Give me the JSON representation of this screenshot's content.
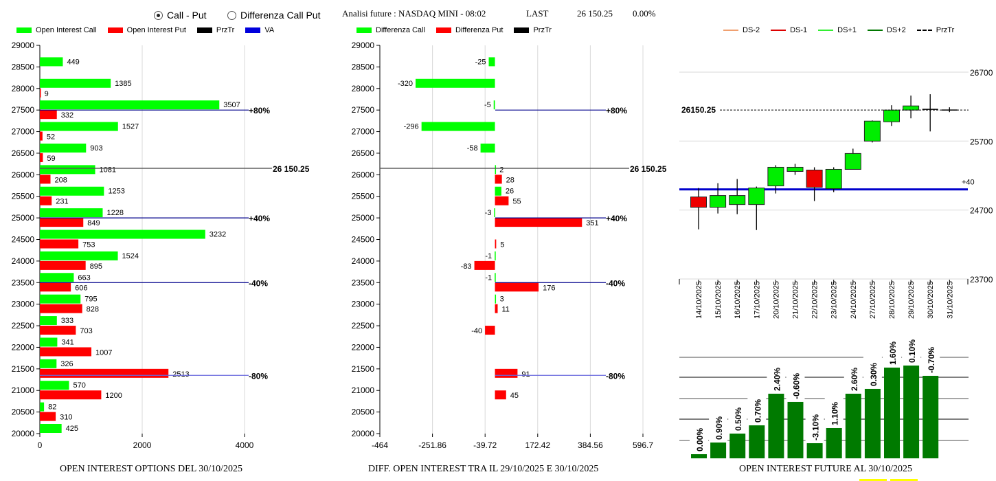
{
  "header": {
    "radio_options": [
      {
        "label": "Call - Put",
        "selected": true
      },
      {
        "label": "Differenza Call Put",
        "selected": false
      }
    ],
    "analysis_label": "Analisi future : NASDAQ MINI - 08:02",
    "last_label": "LAST",
    "last_value": "26 150.25",
    "last_change": "0.00%"
  },
  "colors": {
    "call": "#00ff00",
    "put": "#ff0000",
    "przTr": "#000000",
    "va": "#0000cc",
    "candle_up": "#00ee00",
    "candle_down": "#ee0000",
    "oi_bar": "#007a00",
    "ds_minus2": "#f0a070",
    "ds_minus1": "#dd0000",
    "ds_plus1": "#33ee33",
    "ds_plus2": "#007700"
  },
  "chart_data": [
    {
      "type": "bar",
      "orientation": "horizontal",
      "title": "OPEN INTEREST OPTIONS DEL 30/10/2025",
      "legend": [
        "Open Interest Call",
        "Open Interest Put",
        "PrzTr",
        "VA"
      ],
      "legend_position": "top",
      "categories": [
        29000,
        28500,
        28000,
        27500,
        27000,
        26500,
        26000,
        25500,
        25000,
        24500,
        24000,
        23500,
        23000,
        22500,
        22000,
        21500,
        21000,
        20500,
        20000
      ],
      "series": [
        {
          "name": "Open Interest Call",
          "values": [
            null,
            449,
            1385,
            3507,
            1527,
            903,
            1081,
            1253,
            1228,
            3232,
            1524,
            663,
            795,
            333,
            341,
            326,
            570,
            82,
            425
          ]
        },
        {
          "name": "Open Interest Put",
          "values": [
            null,
            null,
            9,
            332,
            52,
            59,
            208,
            231,
            849,
            753,
            895,
            606,
            828,
            703,
            1007,
            2513,
            1200,
            310,
            null
          ]
        }
      ],
      "xlim": [
        0,
        4000
      ],
      "xticks": [
        "0",
        "2000",
        "4000"
      ],
      "yticks": [
        "29000",
        "28500",
        "28000",
        "27500",
        "27000",
        "26500",
        "26000",
        "25500",
        "25000",
        "24500",
        "24000",
        "23500",
        "23000",
        "22500",
        "22000",
        "21500",
        "21000",
        "20500",
        "20000"
      ],
      "reference_lines": [
        {
          "label": "+80%",
          "level": 27500,
          "kind": "va"
        },
        {
          "label": "26 150.25",
          "level": 26150.25,
          "kind": "przTr"
        },
        {
          "label": "+40%",
          "level": 25000,
          "kind": "va"
        },
        {
          "label": "-40%",
          "level": 23500,
          "kind": "va"
        },
        {
          "label": "-80%",
          "level": 21350,
          "kind": "va-light"
        }
      ]
    },
    {
      "type": "bar",
      "orientation": "horizontal",
      "title": "DIFF. OPEN INTEREST TRA IL 29/10/2025 E 30/10/2025",
      "legend": [
        "Differenza Call",
        "Differenza Put",
        "PrzTr"
      ],
      "legend_position": "top",
      "categories": [
        29000,
        28500,
        28000,
        27500,
        27000,
        26500,
        26000,
        25500,
        25000,
        24500,
        24000,
        23500,
        23000,
        22500,
        22000,
        21500,
        21000,
        20500,
        20000
      ],
      "series": [
        {
          "name": "Differenza Call",
          "values": [
            null,
            -25,
            -320,
            -5,
            -296,
            -58,
            2,
            26,
            -3,
            null,
            -1,
            -1,
            3,
            null,
            null,
            null,
            null,
            null,
            null
          ]
        },
        {
          "name": "Differenza Put",
          "values": [
            null,
            null,
            null,
            null,
            null,
            null,
            28,
            55,
            351,
            5,
            -83,
            176,
            11,
            -40,
            null,
            91,
            45,
            null,
            null
          ]
        }
      ],
      "xlim": [
        -464,
        596.7
      ],
      "xticks": [
        "-464",
        "-251.86",
        "-39.72",
        "172.42",
        "384.56",
        "596.7"
      ],
      "yticks": [
        "29000",
        "28500",
        "28000",
        "27500",
        "27000",
        "26500",
        "26000",
        "25500",
        "25000",
        "24500",
        "24000",
        "23500",
        "23000",
        "22500",
        "22000",
        "21500",
        "21000",
        "20500",
        "20000"
      ],
      "reference_lines": [
        {
          "label": "+80%",
          "level": 27500,
          "kind": "va"
        },
        {
          "label": "26 150.25",
          "level": 26150.25,
          "kind": "przTr"
        },
        {
          "label": "+40%",
          "level": 25000,
          "kind": "va"
        },
        {
          "label": "-40%",
          "level": 23500,
          "kind": "va"
        },
        {
          "label": "-80%",
          "level": 21350,
          "kind": "va-light"
        }
      ]
    },
    {
      "type": "candlestick",
      "title": "",
      "legend": [
        "DS-2",
        "DS-1",
        "DS+1",
        "DS+2",
        "PrzTr"
      ],
      "legend_position": "top",
      "yticks": [
        "26700",
        "25700",
        "24700",
        "23700"
      ],
      "ylim": [
        23700,
        26700
      ],
      "price_label": "26150.25",
      "price_level": 26150.25,
      "va_label": "+40",
      "va_level": 25000,
      "x": [
        "14/10/2025",
        "15/10/2025",
        "16/10/2025",
        "17/10/2025",
        "20/10/2025",
        "21/10/2025",
        "22/10/2025",
        "23/10/2025",
        "24/10/2025",
        "27/10/2025",
        "28/10/2025",
        "29/10/2025",
        "30/10/2025",
        "31/10/2025"
      ],
      "candles": [
        {
          "open": 24890,
          "close": 24740,
          "high": 25020,
          "low": 24420
        },
        {
          "open": 24740,
          "close": 24910,
          "high": 25090,
          "low": 24650
        },
        {
          "open": 24780,
          "close": 24910,
          "high": 25150,
          "low": 24640
        },
        {
          "open": 24780,
          "close": 25020,
          "high": 25040,
          "low": 24410
        },
        {
          "open": 25050,
          "close": 25320,
          "high": 25350,
          "low": 24940
        },
        {
          "open": 25260,
          "close": 25320,
          "high": 25370,
          "low": 25210
        },
        {
          "open": 25280,
          "close": 25030,
          "high": 25320,
          "low": 24830
        },
        {
          "open": 25010,
          "close": 25290,
          "high": 25320,
          "low": 24960
        },
        {
          "open": 25290,
          "close": 25520,
          "high": 25590,
          "low": 25290
        },
        {
          "open": 25700,
          "close": 25990,
          "high": 26000,
          "low": 25680
        },
        {
          "open": 25980,
          "close": 26150,
          "high": 26220,
          "low": 25920
        },
        {
          "open": 26150,
          "close": 26210,
          "high": 26360,
          "low": 26030
        },
        {
          "open": 26150,
          "close": 26160,
          "high": 26380,
          "low": 25840
        },
        {
          "open": 26150,
          "close": 26150,
          "high": 26190,
          "low": 26120
        }
      ]
    },
    {
      "type": "bar",
      "title": "OPEN INTEREST FUTURE AL 30/10/2025",
      "categories": [
        "14/10/2025",
        "15/10/2025",
        "16/10/2025",
        "17/10/2025",
        "20/10/2025",
        "21/10/2025",
        "22/10/2025",
        "23/10/2025",
        "24/10/2025",
        "27/10/2025",
        "28/10/2025",
        "29/10/2025",
        "30/10/2025"
      ],
      "labels": [
        "0.00%",
        "0.90%",
        "0.50%",
        "0.70%",
        "2.40%",
        "-0.60%",
        "-3.10%",
        "1.10%",
        "2.60%",
        "0.30%",
        "1.60%",
        "0.10%",
        "-0.70%"
      ],
      "relative_heights": [
        0.06,
        0.23,
        0.36,
        0.48,
        0.94,
        0.82,
        0.22,
        0.44,
        0.94,
        1.01,
        1.32,
        1.35,
        1.2
      ],
      "grid": true
    }
  ]
}
